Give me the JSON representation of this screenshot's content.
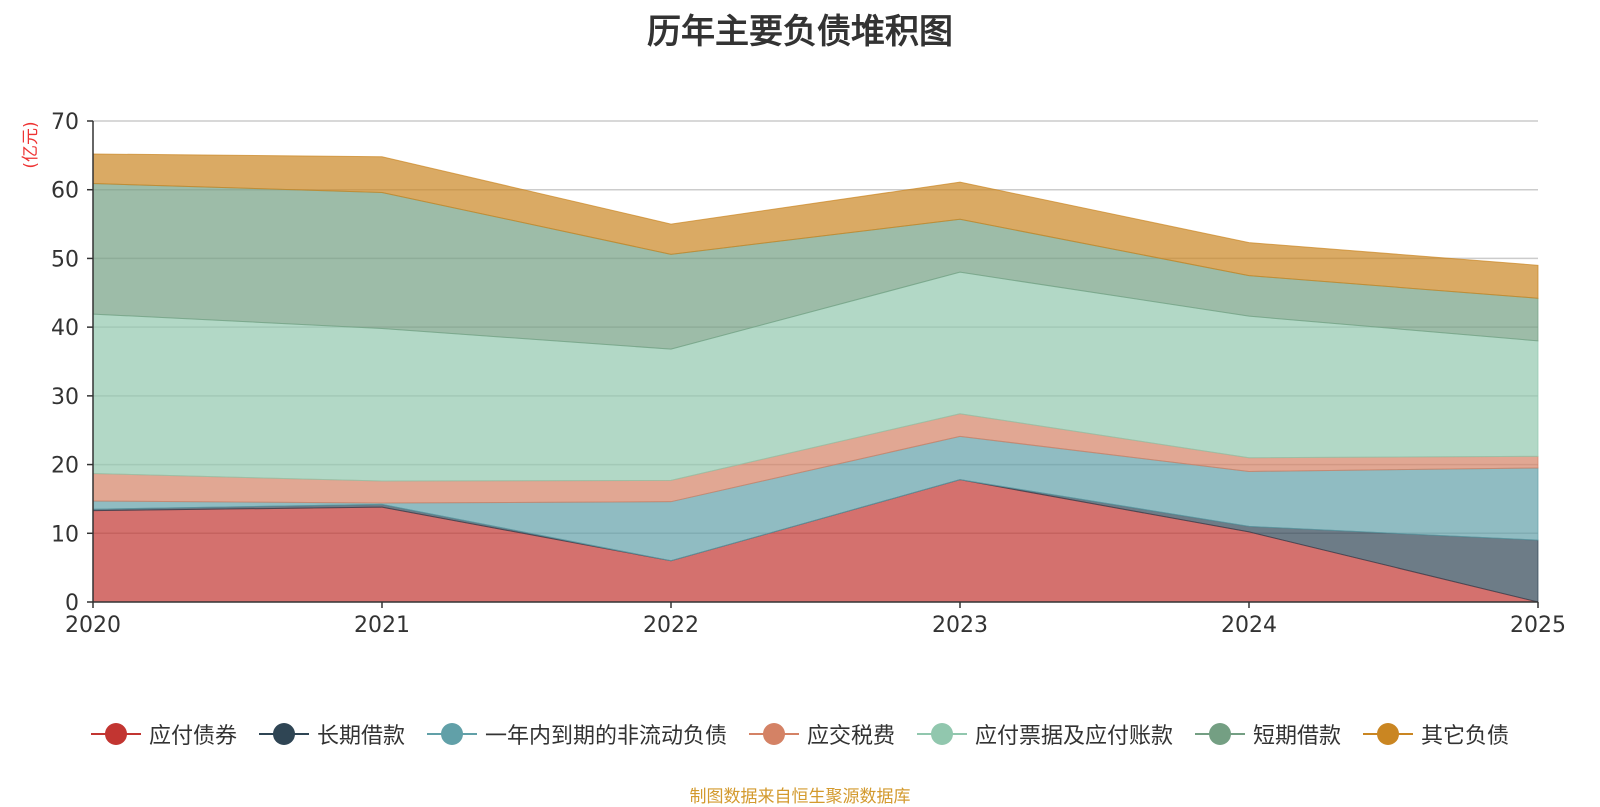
{
  "chart_data": {
    "type": "area",
    "stacked": true,
    "title": "历年主要负债堆积图",
    "ylabel": "(亿元)",
    "ylim": [
      0,
      70
    ],
    "yticks": [
      0,
      10,
      20,
      30,
      40,
      50,
      60,
      70
    ],
    "categories": [
      "2020",
      "2021",
      "2022",
      "2023",
      "2024",
      "2025"
    ],
    "grid": true,
    "legend_position": "bottom",
    "series": [
      {
        "name": "应付债券",
        "color": "#c23531",
        "values": [
          13.3,
          13.8,
          6.0,
          17.8,
          10.2,
          0.0
        ]
      },
      {
        "name": "长期借款",
        "color": "#2f4554",
        "values": [
          0.2,
          0.4,
          0.0,
          0.0,
          0.8,
          9.0
        ]
      },
      {
        "name": "一年内到期的非流动负债",
        "color": "#61a0a8",
        "values": [
          1.2,
          0.2,
          8.6,
          6.3,
          8.0,
          10.5
        ]
      },
      {
        "name": "应交税费",
        "color": "#d48265",
        "values": [
          4.0,
          3.2,
          3.1,
          3.3,
          2.0,
          1.7
        ]
      },
      {
        "name": "应付票据及应付账款",
        "color": "#91c7ae",
        "values": [
          23.2,
          22.2,
          19.1,
          20.6,
          20.6,
          16.8
        ]
      },
      {
        "name": "短期借款",
        "color": "#749f83",
        "values": [
          19.0,
          19.8,
          13.8,
          7.7,
          5.9,
          6.2
        ]
      },
      {
        "name": "其它负债",
        "color": "#ca8622",
        "values": [
          4.3,
          5.2,
          4.4,
          5.4,
          4.8,
          4.8
        ]
      }
    ]
  },
  "source_note": "制图数据来自恒生聚源数据库"
}
